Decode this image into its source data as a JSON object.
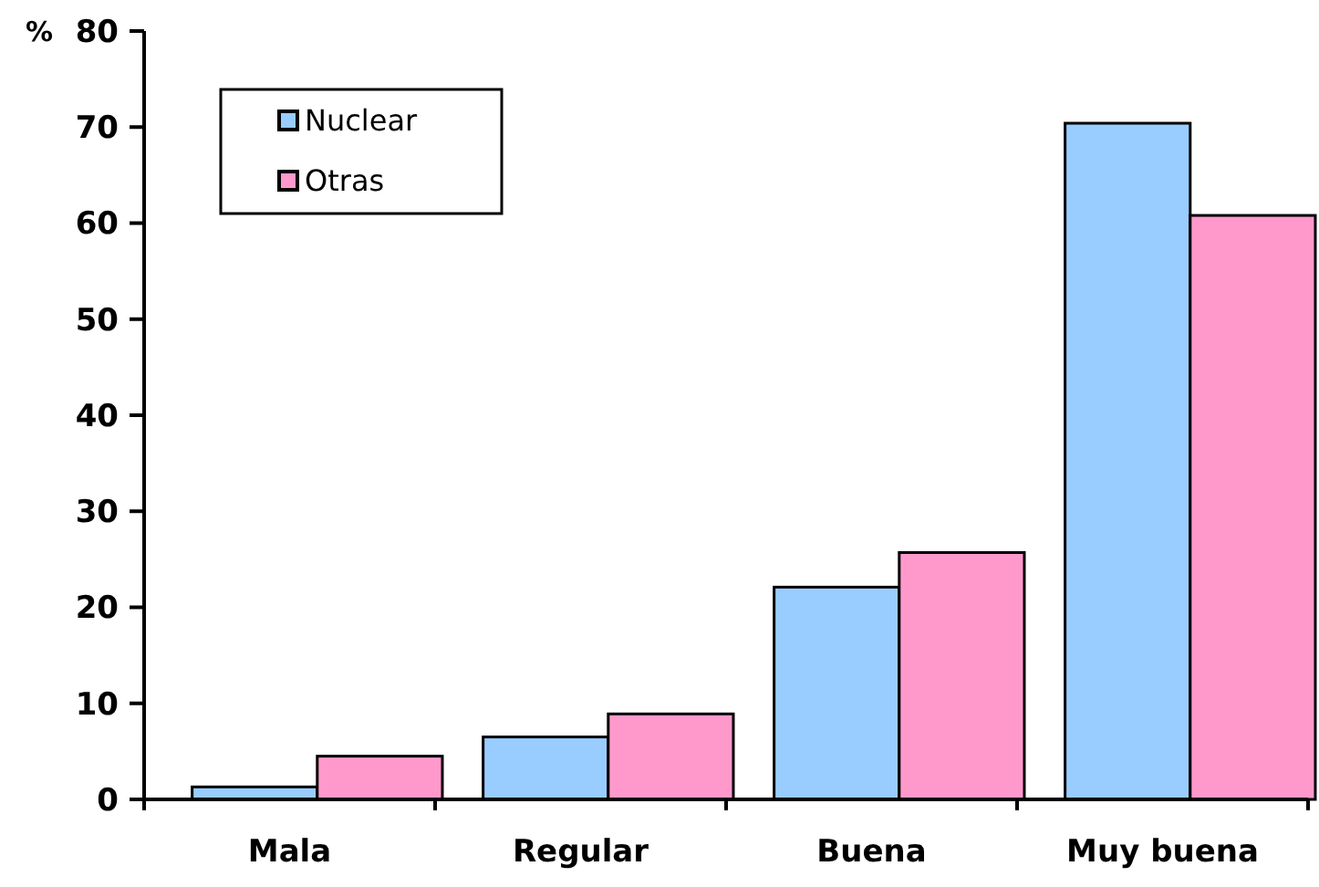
{
  "chart_data": {
    "type": "bar",
    "ylabel": "%",
    "categories": [
      "Mala",
      "Regular",
      "Buena",
      "Muy buena"
    ],
    "series": [
      {
        "name": "Nuclear",
        "color": "#99ccff",
        "values": [
          1.3,
          6.5,
          22.1,
          70.4
        ]
      },
      {
        "name": "Otras",
        "color": "#ff99cc",
        "values": [
          4.5,
          8.9,
          25.7,
          60.8
        ]
      }
    ],
    "ylim": [
      0,
      80
    ],
    "yticks": [
      0,
      10,
      20,
      30,
      40,
      50,
      60,
      70,
      80
    ],
    "legend": "top left",
    "grid": false
  }
}
